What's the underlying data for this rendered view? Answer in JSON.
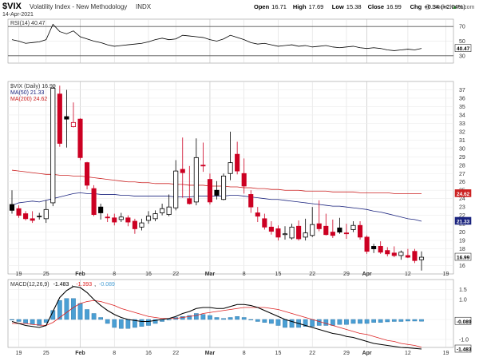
{
  "header": {
    "symbol": "$VIX",
    "name": "Volatility Index - New Methodology",
    "exchange": "INDX",
    "date": "14-Apr-2021",
    "watermark": "@ StockCharts.com",
    "ohlc": [
      {
        "label": "Open",
        "value": "16.71"
      },
      {
        "label": "High",
        "value": "17.69"
      },
      {
        "label": "Low",
        "value": "15.38"
      },
      {
        "label": "Close",
        "value": "16.99"
      },
      {
        "label": "Chg",
        "value": "+0.34 (+2.04%)"
      }
    ],
    "chg_arrow": "▲"
  },
  "colors": {
    "up": "#000000",
    "down": "#cc0022",
    "ma50": "#1a237e",
    "ma200": "#cc2222",
    "rsi": "#000000",
    "macd": "#000000",
    "signal": "#dd2222",
    "hist": "#4a9fd4"
  },
  "chart_data": [
    {
      "type": "line",
      "panel": "rsi",
      "legend": "RSI(14) 40.47",
      "ylim": [
        20,
        80
      ],
      "yticks": [
        30,
        50,
        70
      ],
      "guide_levels": [
        70,
        30
      ],
      "last_label": "40.47",
      "x": [
        "2021-01-15",
        "2021-01-19",
        "2021-01-20",
        "2021-01-21",
        "2021-01-22",
        "2021-01-25",
        "2021-01-26",
        "2021-01-27",
        "2021-01-28",
        "2021-01-29",
        "2021-02-01",
        "2021-02-02",
        "2021-02-03",
        "2021-02-04",
        "2021-02-05",
        "2021-02-08",
        "2021-02-09",
        "2021-02-10",
        "2021-02-11",
        "2021-02-12",
        "2021-02-16",
        "2021-02-17",
        "2021-02-18",
        "2021-02-19",
        "2021-02-22",
        "2021-02-23",
        "2021-02-24",
        "2021-02-25",
        "2021-02-26",
        "2021-03-01",
        "2021-03-02",
        "2021-03-03",
        "2021-03-04",
        "2021-03-05",
        "2021-03-08",
        "2021-03-09",
        "2021-03-10",
        "2021-03-11",
        "2021-03-12",
        "2021-03-15",
        "2021-03-16",
        "2021-03-17",
        "2021-03-18",
        "2021-03-19",
        "2021-03-22",
        "2021-03-23",
        "2021-03-24",
        "2021-03-25",
        "2021-03-26",
        "2021-03-29",
        "2021-03-30",
        "2021-03-31",
        "2021-04-01",
        "2021-04-05",
        "2021-04-06",
        "2021-04-07",
        "2021-04-08",
        "2021-04-09",
        "2021-04-12",
        "2021-04-13",
        "2021-04-14"
      ],
      "values": [
        52,
        50,
        47,
        48,
        49,
        52,
        73,
        63,
        60,
        64,
        56,
        53,
        50,
        48,
        45,
        43,
        44,
        45,
        46,
        47,
        49,
        52,
        54,
        52,
        53,
        58,
        57,
        56,
        55,
        52,
        50,
        53,
        58,
        55,
        52,
        48,
        46,
        47,
        45,
        43,
        44,
        45,
        43,
        44,
        42,
        43,
        44,
        42,
        41,
        42,
        43,
        41,
        40,
        41,
        40,
        38,
        37,
        38,
        39,
        38,
        40
      ]
    },
    {
      "type": "candlestick",
      "panel": "price",
      "legend": "$VIX (Daily) 16.99",
      "ylim": [
        15,
        38
      ],
      "yticks": [
        16,
        17,
        18,
        19,
        20,
        21,
        22,
        23,
        24,
        25,
        26,
        27,
        28,
        29,
        30,
        31,
        32,
        33,
        34,
        35,
        36,
        37
      ],
      "x": [
        "2021-01-15",
        "2021-01-19",
        "2021-01-20",
        "2021-01-21",
        "2021-01-22",
        "2021-01-25",
        "2021-01-26",
        "2021-01-27",
        "2021-01-28",
        "2021-01-29",
        "2021-02-01",
        "2021-02-02",
        "2021-02-03",
        "2021-02-04",
        "2021-02-05",
        "2021-02-08",
        "2021-02-09",
        "2021-02-10",
        "2021-02-11",
        "2021-02-12",
        "2021-02-16",
        "2021-02-17",
        "2021-02-18",
        "2021-02-19",
        "2021-02-22",
        "2021-02-23",
        "2021-02-24",
        "2021-02-25",
        "2021-02-26",
        "2021-03-01",
        "2021-03-02",
        "2021-03-03",
        "2021-03-04",
        "2021-03-05",
        "2021-03-08",
        "2021-03-09",
        "2021-03-10",
        "2021-03-11",
        "2021-03-12",
        "2021-03-15",
        "2021-03-16",
        "2021-03-17",
        "2021-03-18",
        "2021-03-19",
        "2021-03-22",
        "2021-03-23",
        "2021-03-24",
        "2021-03-25",
        "2021-03-26",
        "2021-03-29",
        "2021-03-30",
        "2021-03-31",
        "2021-04-01",
        "2021-04-05",
        "2021-04-06",
        "2021-04-07",
        "2021-04-08",
        "2021-04-09",
        "2021-04-12",
        "2021-04-13",
        "2021-04-14"
      ],
      "open": [
        23.3,
        22.8,
        22.2,
        21.6,
        21.9,
        21.6,
        23.5,
        36.5,
        33.8,
        32.6,
        33.5,
        28.3,
        25.2,
        23.0,
        21.8,
        21.7,
        21.5,
        21.7,
        21.3,
        20.6,
        21.4,
        21.6,
        22.3,
        22.1,
        22.9,
        27.5,
        24.0,
        23.6,
        28.0,
        26.3,
        25.0,
        23.9,
        27.0,
        29.3,
        27.0,
        24.5,
        22.3,
        21.6,
        20.6,
        20.4,
        19.7,
        19.3,
        20.7,
        19.4,
        19.6,
        21.0,
        20.7,
        20.0,
        20.5,
        19.9,
        20.3,
        20.8,
        19.4,
        18.3,
        18.3,
        17.8,
        17.5,
        17.2,
        17.2,
        17.7,
        16.7
      ],
      "close": [
        22.6,
        22.0,
        21.6,
        21.4,
        21.9,
        22.7,
        37.2,
        30.6,
        33.5,
        33.1,
        28.9,
        25.6,
        22.1,
        22.3,
        21.7,
        21.2,
        21.8,
        21.2,
        20.4,
        21.1,
        21.9,
        22.2,
        22.8,
        23.0,
        27.3,
        27.1,
        23.4,
        28.9,
        27.9,
        23.6,
        24.4,
        26.7,
        28.3,
        27.3,
        25.5,
        23.0,
        21.9,
        20.6,
        20.1,
        19.4,
        19.8,
        20.6,
        19.2,
        19.9,
        20.9,
        20.4,
        19.7,
        19.6,
        20.0,
        19.8,
        20.8,
        19.4,
        17.7,
        18.0,
        17.6,
        17.4,
        17.2,
        17.6,
        17.0,
        16.6,
        17.0
      ],
      "high": [
        25.0,
        23.2,
        22.5,
        22.5,
        22.3,
        23.8,
        37.4,
        37.5,
        37.0,
        35.5,
        33.6,
        28.4,
        25.6,
        23.4,
        22.2,
        22.2,
        22.3,
        22.0,
        21.6,
        21.6,
        22.5,
        22.6,
        23.4,
        24.5,
        28.6,
        31.3,
        27.9,
        31.2,
        30.7,
        27.0,
        26.1,
        27.0,
        32.0,
        30.8,
        28.8,
        25.0,
        23.0,
        22.2,
        21.3,
        20.8,
        20.7,
        21.0,
        21.4,
        21.6,
        23.0,
        23.8,
        22.2,
        21.5,
        21.7,
        21.0,
        21.3,
        21.3,
        19.6,
        18.6,
        18.9,
        18.2,
        18.3,
        17.8,
        18.0,
        18.0,
        17.7
      ],
      "low": [
        22.2,
        21.7,
        21.4,
        21.1,
        21.5,
        21.1,
        23.1,
        30.2,
        30.1,
        32.5,
        28.6,
        25.1,
        21.9,
        21.5,
        21.2,
        20.8,
        21.2,
        20.7,
        19.8,
        20.2,
        21.0,
        21.3,
        22.0,
        21.9,
        22.6,
        24.1,
        23.3,
        23.2,
        27.2,
        23.3,
        23.9,
        23.8,
        26.2,
        26.9,
        24.6,
        22.3,
        21.2,
        20.3,
        19.7,
        19.0,
        19.1,
        19.1,
        19.0,
        19.0,
        19.4,
        20.1,
        19.6,
        19.3,
        19.8,
        19.2,
        20.0,
        19.1,
        17.4,
        17.5,
        17.4,
        17.1,
        17.0,
        16.7,
        16.9,
        16.3,
        15.4
      ],
      "ma50": {
        "legend": "MA(50) 21.33",
        "last_label": "21.33",
        "values": [
          23.2,
          23.5,
          23.6,
          23.7,
          23.6,
          23.8,
          24.0,
          24.2,
          24.4,
          24.6,
          24.7,
          24.6,
          24.6,
          24.5,
          24.5,
          24.5,
          24.4,
          24.4,
          24.3,
          24.3,
          24.3,
          24.3,
          24.3,
          24.3,
          24.2,
          24.2,
          24.2,
          24.3,
          24.3,
          24.3,
          24.3,
          24.3,
          24.4,
          24.4,
          24.3,
          24.2,
          24.1,
          24.0,
          23.9,
          23.9,
          23.8,
          23.7,
          23.6,
          23.5,
          23.4,
          23.3,
          23.2,
          23.1,
          23.1,
          23.0,
          22.9,
          22.8,
          22.7,
          22.5,
          22.4,
          22.2,
          22.0,
          21.8,
          21.6,
          21.5,
          21.3
        ]
      },
      "ma200": {
        "legend": "MA(200) 24.62",
        "last_label": "24.62",
        "values": [
          27.4,
          27.3,
          27.2,
          27.1,
          27.0,
          26.9,
          26.9,
          26.8,
          26.8,
          26.7,
          26.7,
          26.6,
          26.5,
          26.4,
          26.3,
          26.2,
          26.1,
          26.0,
          26.0,
          25.9,
          25.9,
          25.8,
          25.8,
          25.8,
          25.7,
          25.7,
          25.6,
          25.6,
          25.6,
          25.5,
          25.5,
          25.5,
          25.4,
          25.4,
          25.3,
          25.3,
          25.2,
          25.2,
          25.1,
          25.1,
          25.0,
          25.0,
          25.0,
          24.9,
          24.9,
          24.9,
          24.9,
          24.8,
          24.8,
          24.8,
          24.8,
          24.7,
          24.7,
          24.7,
          24.7,
          24.7,
          24.6,
          24.6,
          24.6,
          24.6,
          24.6
        ]
      },
      "last_label": "16.99"
    },
    {
      "type": "line",
      "panel": "macd",
      "legend_title": "MACD(12,26,9)",
      "legend_values": [
        "-1.483",
        "-1.393",
        "-0.089"
      ],
      "ylim": [
        -1.4,
        2.0
      ],
      "yticks": [
        -1.0,
        0.0,
        1.0,
        1.5
      ],
      "last_labels": [
        "-0.089",
        "-1.483"
      ],
      "series": [
        {
          "key": "macd",
          "values": [
            -0.1,
            -0.2,
            -0.3,
            -0.35,
            -0.4,
            -0.3,
            0.4,
            1.1,
            1.45,
            1.65,
            1.6,
            1.35,
            1.0,
            0.7,
            0.45,
            0.25,
            0.1,
            0.0,
            -0.05,
            -0.1,
            -0.1,
            -0.05,
            0.0,
            0.05,
            0.15,
            0.3,
            0.4,
            0.55,
            0.6,
            0.6,
            0.55,
            0.55,
            0.65,
            0.75,
            0.75,
            0.7,
            0.6,
            0.45,
            0.3,
            0.15,
            0.0,
            -0.1,
            -0.2,
            -0.3,
            -0.4,
            -0.5,
            -0.6,
            -0.7,
            -0.75,
            -0.85,
            -0.9,
            -1.0,
            -1.1,
            -1.2,
            -1.25,
            -1.3,
            -1.35,
            -1.4,
            -1.42,
            -1.45,
            -1.48
          ]
        },
        {
          "key": "signal",
          "values": [
            -0.2,
            -0.2,
            -0.2,
            -0.25,
            -0.28,
            -0.3,
            -0.15,
            0.1,
            0.35,
            0.6,
            0.8,
            0.9,
            0.95,
            0.9,
            0.8,
            0.7,
            0.55,
            0.45,
            0.35,
            0.25,
            0.15,
            0.1,
            0.05,
            0.05,
            0.05,
            0.1,
            0.15,
            0.2,
            0.3,
            0.35,
            0.4,
            0.45,
            0.5,
            0.55,
            0.6,
            0.6,
            0.6,
            0.6,
            0.55,
            0.5,
            0.4,
            0.3,
            0.2,
            0.1,
            0.0,
            -0.1,
            -0.2,
            -0.3,
            -0.4,
            -0.5,
            -0.6,
            -0.7,
            -0.75,
            -0.85,
            -0.95,
            -1.05,
            -1.1,
            -1.2,
            -1.25,
            -1.3,
            -1.39
          ]
        },
        {
          "key": "hist",
          "values": [
            0.0,
            -0.1,
            -0.2,
            -0.25,
            -0.3,
            -0.15,
            0.45,
            0.95,
            1.05,
            1.05,
            0.8,
            0.5,
            0.3,
            0.1,
            -0.2,
            -0.4,
            -0.45,
            -0.45,
            -0.4,
            -0.35,
            -0.3,
            -0.2,
            -0.1,
            0.0,
            0.1,
            0.15,
            0.2,
            0.3,
            0.25,
            0.2,
            0.1,
            0.05,
            0.1,
            0.15,
            0.1,
            0.0,
            -0.1,
            -0.15,
            -0.2,
            -0.3,
            -0.4,
            -0.4,
            -0.4,
            -0.35,
            -0.35,
            -0.3,
            -0.3,
            -0.3,
            -0.25,
            -0.25,
            -0.2,
            -0.2,
            -0.2,
            -0.15,
            -0.15,
            -0.12,
            -0.1,
            -0.1,
            -0.08,
            -0.08,
            -0.09
          ]
        }
      ]
    }
  ],
  "xaxis": [
    {
      "label": "19",
      "date": "2021-01-19"
    },
    {
      "label": "25",
      "date": "2021-01-25"
    },
    {
      "label": "Feb",
      "date": "2021-02-01",
      "bold": true
    },
    {
      "label": "8",
      "date": "2021-02-08"
    },
    {
      "label": "16",
      "date": "2021-02-16"
    },
    {
      "label": "22",
      "date": "2021-02-22"
    },
    {
      "label": "Mar",
      "date": "2021-03-01",
      "bold": true
    },
    {
      "label": "8",
      "date": "2021-03-08"
    },
    {
      "label": "15",
      "date": "2021-03-15"
    },
    {
      "label": "22",
      "date": "2021-03-22"
    },
    {
      "label": "29",
      "date": "2021-03-29"
    },
    {
      "label": "Apr",
      "date": "2021-04-01",
      "bold": true
    },
    {
      "label": "12",
      "date": "2021-04-12"
    },
    {
      "label": "19",
      "date": "2021-04-19"
    }
  ]
}
